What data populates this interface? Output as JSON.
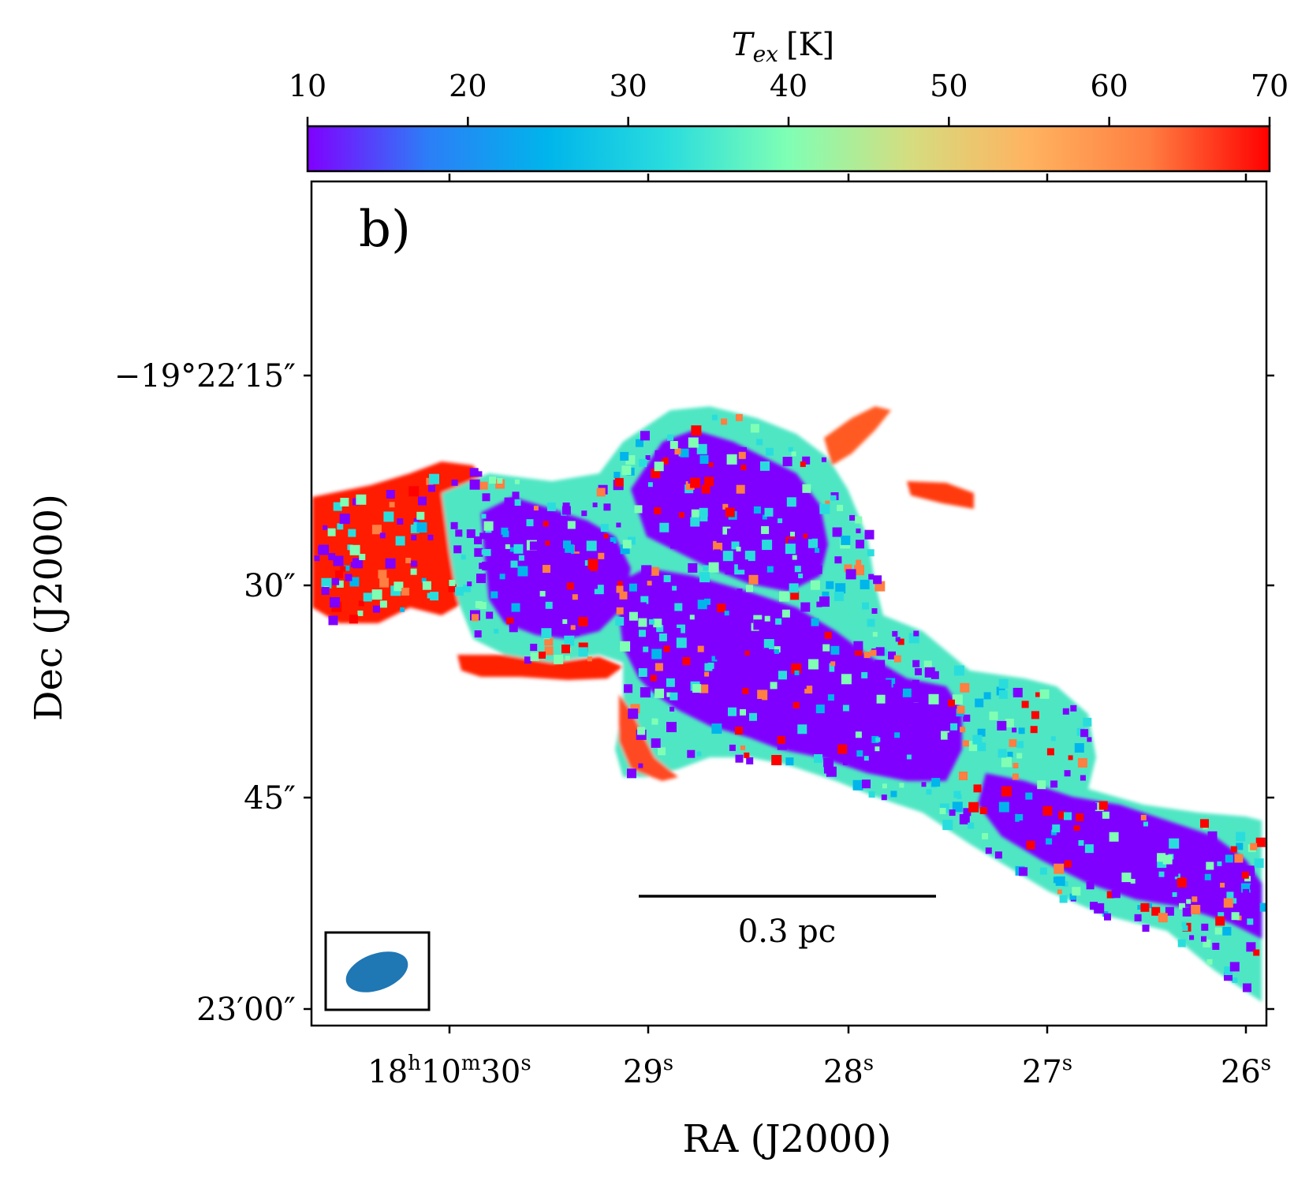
{
  "chart_data": {
    "type": "heatmap",
    "panel_label": "b)",
    "colorbar": {
      "label_symbol": "T",
      "label_subscript": "ex",
      "label_unit": "[K]",
      "min": 10,
      "max": 70,
      "ticks": [
        "10",
        "20",
        "30",
        "40",
        "50",
        "60",
        "70"
      ],
      "tick_values": [
        10,
        20,
        30,
        40,
        50,
        60,
        70
      ],
      "colormap": "rainbow",
      "colormap_stops": [
        "#8000ff",
        "#2c7ef7",
        "#00b5eb",
        "#2adddd",
        "#80ffb4",
        "#d4dd80",
        "#ffb360",
        "#ff7e41",
        "#ff0000"
      ]
    },
    "xlabel": "RA (J2000)",
    "ylabel": "Dec (J2000)",
    "x_ticks": [
      {
        "base": "18",
        "sup_h": "h",
        "mid": "10",
        "sup_m": "m",
        "sec": "30",
        "sup_s": "s"
      },
      {
        "sec": "29",
        "sup_s": "s"
      },
      {
        "sec": "28",
        "sup_s": "s"
      },
      {
        "sec": "27",
        "sup_s": "s"
      },
      {
        "sec": "26",
        "sup_s": "s"
      }
    ],
    "y_ticks": [
      "−19°22′15″",
      "30″",
      "45″",
      "23′00″"
    ],
    "scale_bar_label": "0.3 pc",
    "beam_color": "#1f77b4"
  }
}
